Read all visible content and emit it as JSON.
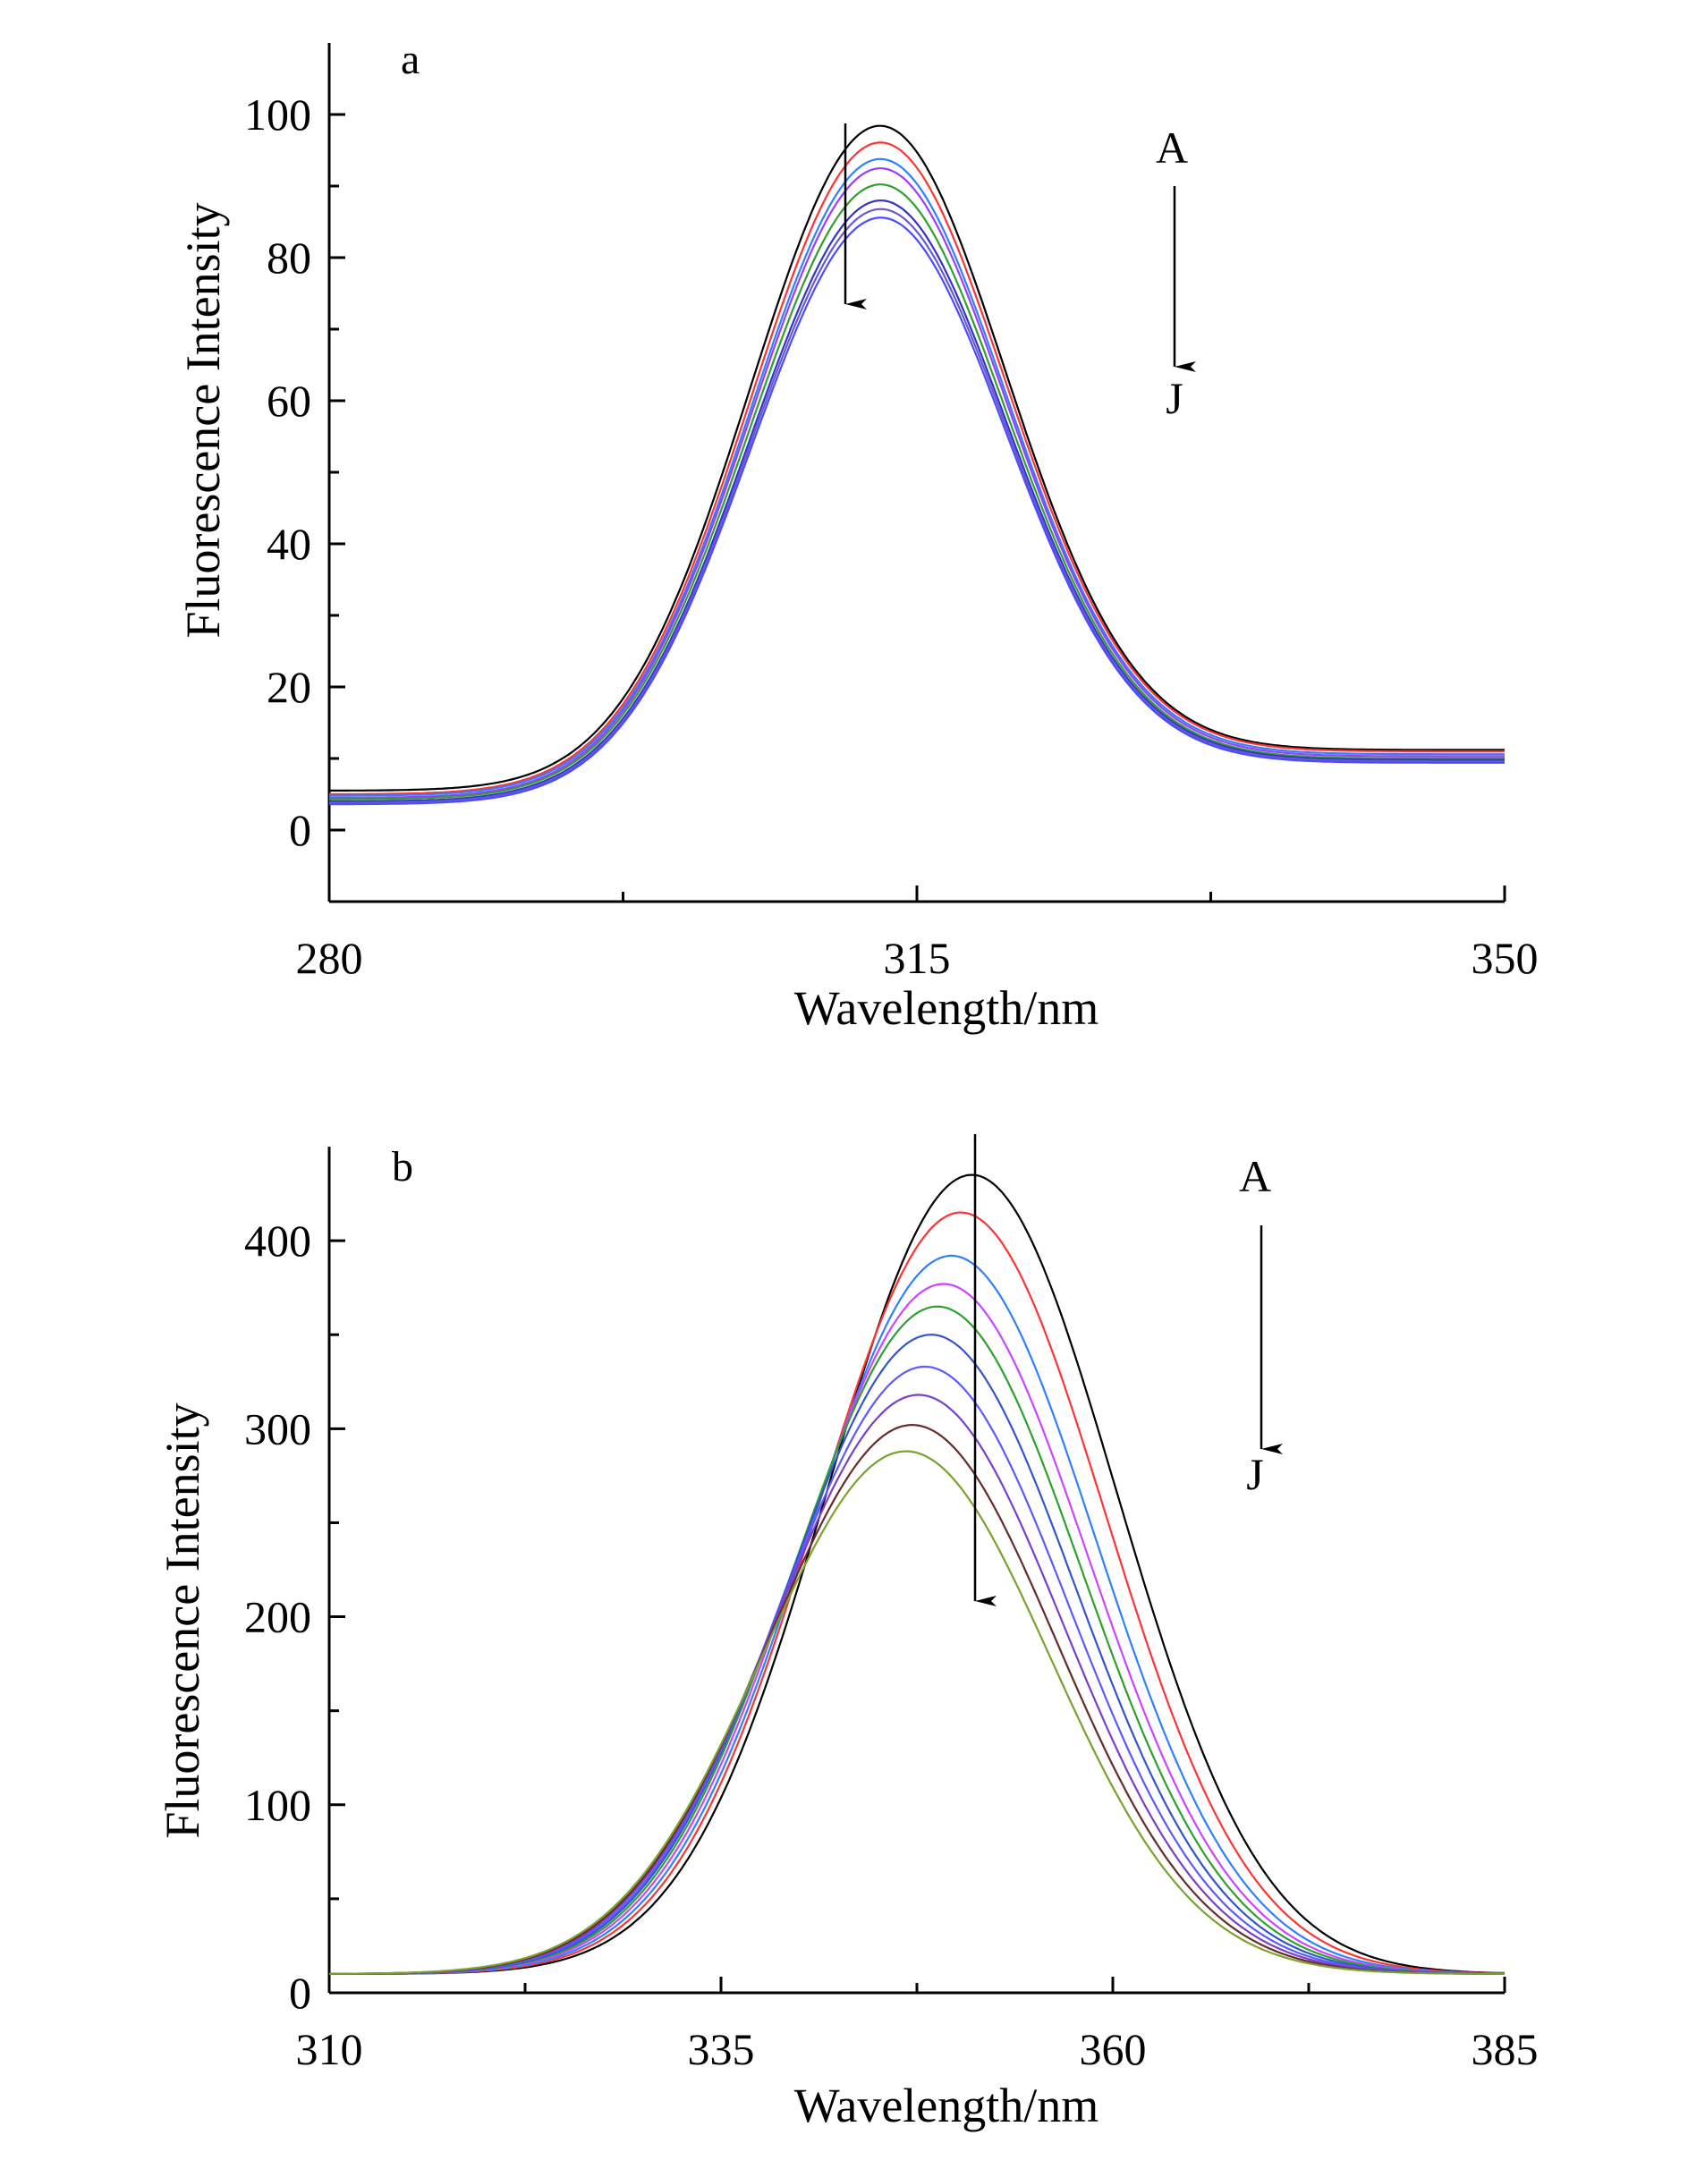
{
  "chart_data": [
    {
      "type": "line",
      "panel_label": "a",
      "xlabel": "Wavelength/nm",
      "ylabel": "Fluorescence Intensity",
      "xlim": [
        280,
        350
      ],
      "ylim": [
        -10,
        110
      ],
      "x_ticks": [
        280,
        315,
        350
      ],
      "x_minor_ticks": [
        297.5,
        332.5
      ],
      "y_ticks": [
        0,
        20,
        40,
        60,
        80,
        100
      ],
      "y_minor_ticks": [
        10,
        30,
        50,
        70,
        90
      ],
      "grid": false,
      "arrow": {
        "start_label": "A",
        "end_label": "J"
      },
      "series": [
        {
          "name": "A",
          "color": "#000000",
          "peak": 312.5,
          "amplitude": 90,
          "baseline_left": 5.5,
          "baseline_right": 11.2
        },
        {
          "name": "B",
          "color": "#ff3333",
          "peak": 312.5,
          "amplitude": 88,
          "baseline_left": 5.0,
          "baseline_right": 11.0
        },
        {
          "name": "C",
          "color": "#2f80ff",
          "peak": 312.5,
          "amplitude": 86,
          "baseline_left": 4.8,
          "baseline_right": 10.6
        },
        {
          "name": "D",
          "color": "#9b3cff",
          "peak": 312.5,
          "amplitude": 85,
          "baseline_left": 4.5,
          "baseline_right": 10.3
        },
        {
          "name": "E",
          "color": "#2ea02e",
          "peak": 312.5,
          "amplitude": 83,
          "baseline_left": 4.3,
          "baseline_right": 10.0
        },
        {
          "name": "F",
          "color": "#3333cc",
          "peak": 312.5,
          "amplitude": 81,
          "baseline_left": 4.0,
          "baseline_right": 9.8
        },
        {
          "name": "G",
          "color": "#6a5acd",
          "peak": 312.5,
          "amplitude": 80,
          "baseline_left": 3.8,
          "baseline_right": 9.6
        },
        {
          "name": "H",
          "color": "#4b4bff",
          "peak": 312.5,
          "amplitude": 79,
          "baseline_left": 3.6,
          "baseline_right": 9.4
        }
      ]
    },
    {
      "type": "line",
      "panel_label": "b",
      "xlabel": "Wavelength/nm",
      "ylabel": "Fluorescence Intensity",
      "xlim": [
        310,
        385
      ],
      "ylim": [
        0,
        450
      ],
      "x_ticks": [
        310,
        335,
        360,
        385
      ],
      "x_minor_ticks": [
        322.5,
        347.5,
        372.5
      ],
      "y_ticks": [
        0,
        100,
        200,
        300,
        400
      ],
      "y_minor_ticks": [
        50,
        150,
        250,
        350
      ],
      "grid": false,
      "arrow": {
        "start_label": "A",
        "end_label": "J"
      },
      "series": [
        {
          "name": "A",
          "color": "#000000",
          "peak": 351,
          "amplitude": 425,
          "baseline": 10
        },
        {
          "name": "B",
          "color": "#ff3333",
          "peak": 350.3,
          "amplitude": 405,
          "baseline": 10
        },
        {
          "name": "C",
          "color": "#2f80ff",
          "peak": 349.7,
          "amplitude": 382,
          "baseline": 10
        },
        {
          "name": "D",
          "color": "#cc44ff",
          "peak": 349.2,
          "amplitude": 367,
          "baseline": 10
        },
        {
          "name": "E",
          "color": "#2ea02e",
          "peak": 348.8,
          "amplitude": 355,
          "baseline": 10
        },
        {
          "name": "F",
          "color": "#3355cc",
          "peak": 348.4,
          "amplitude": 340,
          "baseline": 10
        },
        {
          "name": "G",
          "color": "#5a5aff",
          "peak": 348.0,
          "amplitude": 323,
          "baseline": 10
        },
        {
          "name": "H",
          "color": "#7a3fc9",
          "peak": 347.6,
          "amplitude": 308,
          "baseline": 10
        },
        {
          "name": "I",
          "color": "#6b2a2a",
          "peak": 347.2,
          "amplitude": 292,
          "baseline": 10
        },
        {
          "name": "J",
          "color": "#7aa22e",
          "peak": 346.8,
          "amplitude": 278,
          "baseline": 10
        }
      ]
    }
  ]
}
